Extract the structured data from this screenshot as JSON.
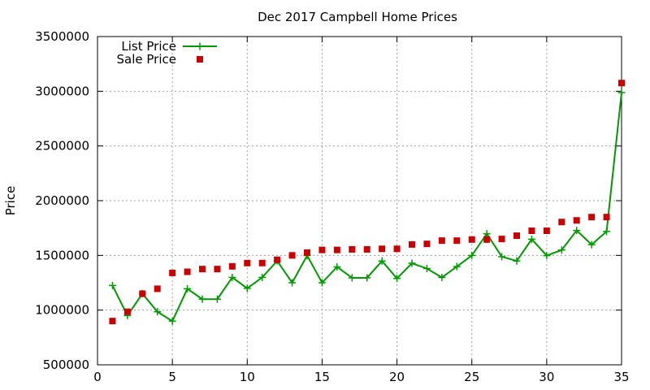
{
  "chart_data": {
    "type": "line",
    "title": "Dec 2017 Campbell Home Prices",
    "xlabel": "",
    "ylabel": "Price",
    "xlim": [
      0,
      35
    ],
    "ylim": [
      500000,
      3500000
    ],
    "x_ticks": [
      0,
      5,
      10,
      15,
      20,
      25,
      30,
      35
    ],
    "y_ticks": [
      500000,
      1000000,
      1500000,
      2000000,
      2500000,
      3000000,
      3500000
    ],
    "grid": true,
    "legend_position": "top-left",
    "series": [
      {
        "name": "List Price",
        "style": "line-plus",
        "color": "#009900",
        "x": [
          1,
          2,
          3,
          4,
          5,
          6,
          7,
          8,
          9,
          10,
          11,
          12,
          13,
          14,
          15,
          16,
          17,
          18,
          19,
          20,
          21,
          22,
          23,
          24,
          25,
          26,
          27,
          28,
          29,
          30,
          31,
          32,
          33,
          34,
          35
        ],
        "values": [
          1225000,
          950000,
          1150000,
          985000,
          899000,
          1195000,
          1100000,
          1100000,
          1299000,
          1199000,
          1299000,
          1450000,
          1250000,
          1499000,
          1250000,
          1395000,
          1295000,
          1295000,
          1449000,
          1289000,
          1428000,
          1380000,
          1298000,
          1398000,
          1499000,
          1698000,
          1488000,
          1449000,
          1648000,
          1498000,
          1549000,
          1728000,
          1598000,
          1719000,
          2988000
        ]
      },
      {
        "name": "Sale Price",
        "style": "square-markers",
        "color": "#cc0000",
        "x": [
          1,
          2,
          3,
          4,
          5,
          6,
          7,
          8,
          9,
          10,
          11,
          12,
          13,
          14,
          15,
          16,
          17,
          18,
          19,
          20,
          21,
          22,
          23,
          24,
          25,
          26,
          27,
          28,
          29,
          30,
          31,
          32,
          33,
          34,
          35
        ],
        "values": [
          900000,
          985000,
          1150000,
          1195000,
          1340000,
          1350000,
          1375000,
          1375000,
          1400000,
          1430000,
          1430000,
          1460000,
          1500000,
          1525000,
          1550000,
          1550000,
          1555000,
          1555000,
          1560000,
          1560000,
          1600000,
          1605000,
          1635000,
          1635000,
          1645000,
          1645000,
          1650000,
          1680000,
          1725000,
          1725000,
          1805000,
          1820000,
          1850000,
          1850000,
          3075000
        ]
      }
    ]
  }
}
